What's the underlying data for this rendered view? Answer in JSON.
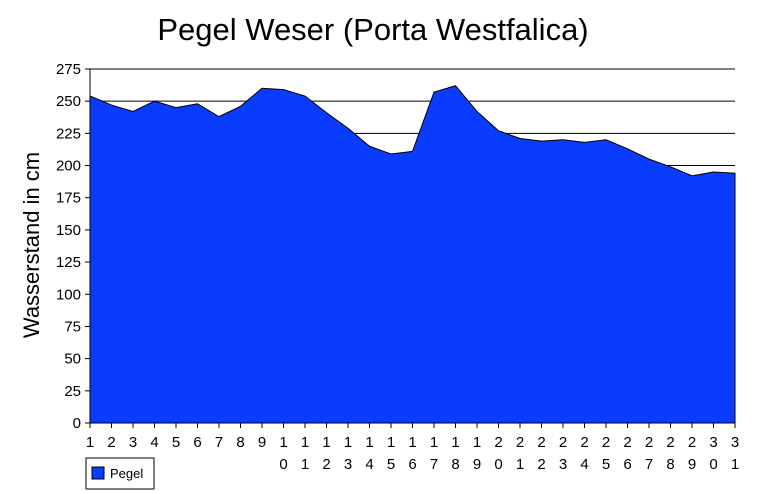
{
  "chart_data": {
    "type": "area",
    "title": "Pegel Weser (Porta Westfalica)",
    "xlabel": "",
    "ylabel": "Wasserstand in cm",
    "x": [
      1,
      2,
      3,
      4,
      5,
      6,
      7,
      8,
      9,
      10,
      11,
      12,
      13,
      14,
      15,
      16,
      17,
      18,
      19,
      20,
      21,
      22,
      23,
      24,
      25,
      26,
      27,
      28,
      29,
      30,
      31
    ],
    "x_tick_labels": [
      "1",
      "2",
      "3",
      "4",
      "5",
      "6",
      "7",
      "8",
      "9",
      "10",
      "11",
      "12",
      "13",
      "14",
      "15",
      "16",
      "17",
      "18",
      "19",
      "20",
      "21",
      "22",
      "23",
      "24",
      "25",
      "26",
      "27",
      "28",
      "29",
      "30",
      "31"
    ],
    "series": [
      {
        "name": "Pegel",
        "color": "#0a3cff",
        "values": [
          254,
          247,
          242,
          250,
          245,
          248,
          238,
          246,
          260,
          259,
          254,
          241,
          229,
          215,
          209,
          211,
          257,
          262,
          242,
          227,
          221,
          219,
          220,
          218,
          220,
          213,
          205,
          199,
          192,
          195,
          194
        ]
      }
    ],
    "ylim": [
      0,
      275
    ],
    "y_ticks": [
      0,
      25,
      50,
      75,
      100,
      125,
      150,
      175,
      200,
      225,
      250,
      275
    ],
    "gridlines": [
      200,
      225,
      250,
      275
    ],
    "legend": {
      "position": "bottom-left",
      "entries": [
        "Pegel"
      ]
    }
  }
}
